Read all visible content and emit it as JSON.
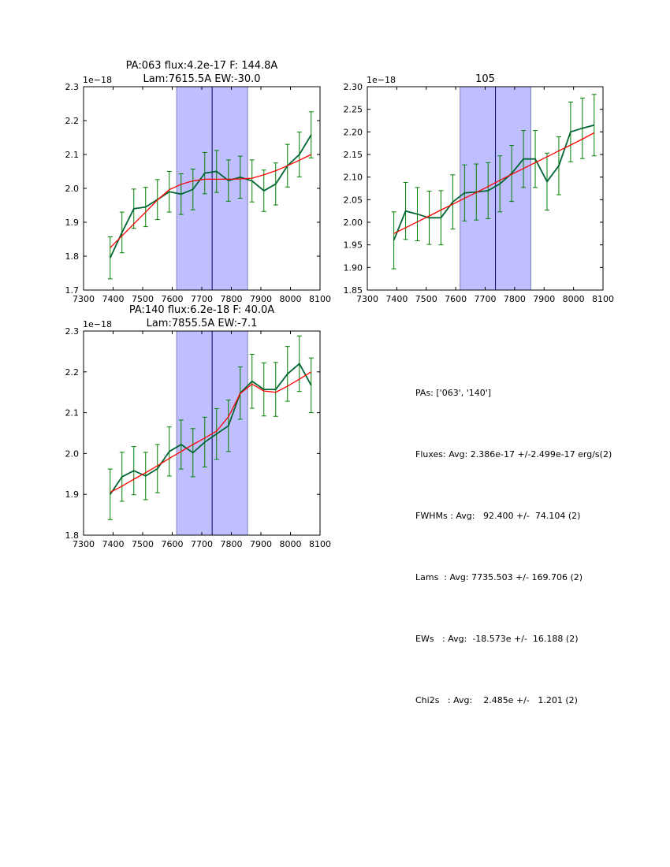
{
  "chart_data": [
    {
      "type": "line",
      "title_lines": [
        "PA:063 flux:4.2e-17 F: 144.8A",
        "Lam:7615.5A EW:-30.0"
      ],
      "offset_label": "1e−18",
      "xlim": [
        7300,
        8100
      ],
      "ylim": [
        1.7,
        2.3
      ],
      "xtick_labels": [
        "7300",
        "7400",
        "7500",
        "7600",
        "7700",
        "7800",
        "7900",
        "8000",
        "8100"
      ],
      "yticks": [
        1.7,
        1.8,
        1.9,
        2.0,
        2.1,
        2.2,
        2.3
      ],
      "ytick_labels": [
        "1.7",
        "1.8",
        "1.9",
        "2.0",
        "2.1",
        "2.2",
        "2.3"
      ],
      "span": [
        7615,
        7855
      ],
      "vline": 7735,
      "x": [
        7390,
        7430,
        7470,
        7510,
        7550,
        7590,
        7630,
        7670,
        7710,
        7750,
        7790,
        7830,
        7870,
        7910,
        7950,
        7990,
        8030,
        8070
      ],
      "series": [
        {
          "name": "data",
          "color": "#006633",
          "values": [
            1.795,
            1.87,
            1.94,
            1.945,
            1.967,
            1.99,
            1.983,
            1.997,
            2.045,
            2.05,
            2.023,
            2.033,
            2.022,
            1.993,
            2.013,
            2.067,
            2.1,
            2.158
          ],
          "errors": [
            0.062,
            0.06,
            0.058,
            0.058,
            0.059,
            0.06,
            0.06,
            0.06,
            0.061,
            0.062,
            0.061,
            0.062,
            0.062,
            0.061,
            0.062,
            0.063,
            0.066,
            0.068
          ]
        },
        {
          "name": "fit",
          "color": "#ff0000",
          "values": [
            1.825,
            1.86,
            1.895,
            1.93,
            1.966,
            1.996,
            2.012,
            2.022,
            2.027,
            2.027,
            2.027,
            2.028,
            2.03,
            2.04,
            2.052,
            2.067,
            2.083,
            2.1
          ]
        }
      ]
    },
    {
      "type": "line",
      "title_lines": [
        "105"
      ],
      "offset_label": "1e−18",
      "xlim": [
        7300,
        8100
      ],
      "ylim": [
        1.85,
        2.3
      ],
      "xtick_labels": [
        "7300",
        "7400",
        "7500",
        "7600",
        "7700",
        "7800",
        "7900",
        "8000",
        "8100"
      ],
      "yticks": [
        1.85,
        1.9,
        1.95,
        2.0,
        2.05,
        2.1,
        2.15,
        2.2,
        2.25,
        2.3
      ],
      "ytick_labels": [
        "1.85",
        "1.90",
        "1.95",
        "2.00",
        "2.05",
        "2.10",
        "2.15",
        "2.20",
        "2.25",
        "2.30"
      ],
      "span": [
        7615,
        7855
      ],
      "vline": 7735,
      "x": [
        7390,
        7430,
        7470,
        7510,
        7550,
        7590,
        7630,
        7670,
        7710,
        7750,
        7790,
        7830,
        7870,
        7910,
        7950,
        7990,
        8030,
        8070
      ],
      "series": [
        {
          "name": "data",
          "color": "#006633",
          "values": [
            1.96,
            2.025,
            2.018,
            2.01,
            2.01,
            2.045,
            2.065,
            2.067,
            2.07,
            2.085,
            2.108,
            2.14,
            2.14,
            2.09,
            2.125,
            2.2,
            2.208,
            2.215
          ],
          "errors": [
            0.063,
            0.063,
            0.059,
            0.059,
            0.06,
            0.06,
            0.062,
            0.062,
            0.062,
            0.062,
            0.062,
            0.063,
            0.063,
            0.063,
            0.064,
            0.066,
            0.067,
            0.068
          ]
        },
        {
          "name": "fit",
          "color": "#ff0000",
          "values": [
            1.975,
            1.988,
            2.001,
            2.014,
            2.027,
            2.04,
            2.053,
            2.066,
            2.079,
            2.093,
            2.106,
            2.119,
            2.132,
            2.145,
            2.158,
            2.171,
            2.184,
            2.198
          ]
        }
      ]
    },
    {
      "type": "line",
      "title_lines": [
        "PA:140 flux:6.2e-18 F: 40.0A",
        "Lam:7855.5A EW:-7.1"
      ],
      "offset_label": "1e−18",
      "xlim": [
        7300,
        8100
      ],
      "ylim": [
        1.8,
        2.3
      ],
      "xtick_labels": [
        "7300",
        "7400",
        "7500",
        "7600",
        "7700",
        "7800",
        "7900",
        "8000",
        "8100"
      ],
      "yticks": [
        1.8,
        1.9,
        2.0,
        2.1,
        2.2,
        2.3
      ],
      "ytick_labels": [
        "1.8",
        "1.9",
        "2.0",
        "2.1",
        "2.2",
        "2.3"
      ],
      "span": [
        7615,
        7855
      ],
      "vline": 7735,
      "x": [
        7390,
        7430,
        7470,
        7510,
        7550,
        7590,
        7630,
        7670,
        7710,
        7750,
        7790,
        7830,
        7870,
        7910,
        7950,
        7990,
        8030,
        8070
      ],
      "series": [
        {
          "name": "data",
          "color": "#006633",
          "values": [
            1.9,
            1.943,
            1.958,
            1.945,
            1.963,
            2.005,
            2.022,
            2.002,
            2.028,
            2.048,
            2.068,
            2.148,
            2.177,
            2.157,
            2.157,
            2.195,
            2.22,
            2.167
          ],
          "errors": [
            0.062,
            0.06,
            0.059,
            0.058,
            0.059,
            0.06,
            0.06,
            0.059,
            0.061,
            0.062,
            0.063,
            0.064,
            0.066,
            0.065,
            0.066,
            0.067,
            0.068,
            0.067
          ]
        },
        {
          "name": "fit",
          "color": "#ff0000",
          "values": [
            1.905,
            1.92,
            1.937,
            1.953,
            1.97,
            1.988,
            2.005,
            2.022,
            2.038,
            2.055,
            2.09,
            2.147,
            2.17,
            2.153,
            2.15,
            2.165,
            2.182,
            2.2
          ]
        }
      ]
    }
  ],
  "summary": {
    "lines": [
      "PAs: ['063', '140']",
      "Fluxes: Avg: 2.386e-17 +/-2.499e-17 erg/s(2)",
      "FWHMs : Avg:   92.400 +/-  74.104 (2)",
      "Lams  : Avg: 7735.503 +/- 169.706 (2)",
      "EWs   : Avg:  -18.573e +/-  16.188 (2)",
      "Chi2s   : Avg:    2.485e +/-   1.201 (2)"
    ]
  },
  "colors": {
    "span": "#bfbfff",
    "span_edge": "#8080bb",
    "vline": "#000066",
    "errorbar": "#008000"
  }
}
